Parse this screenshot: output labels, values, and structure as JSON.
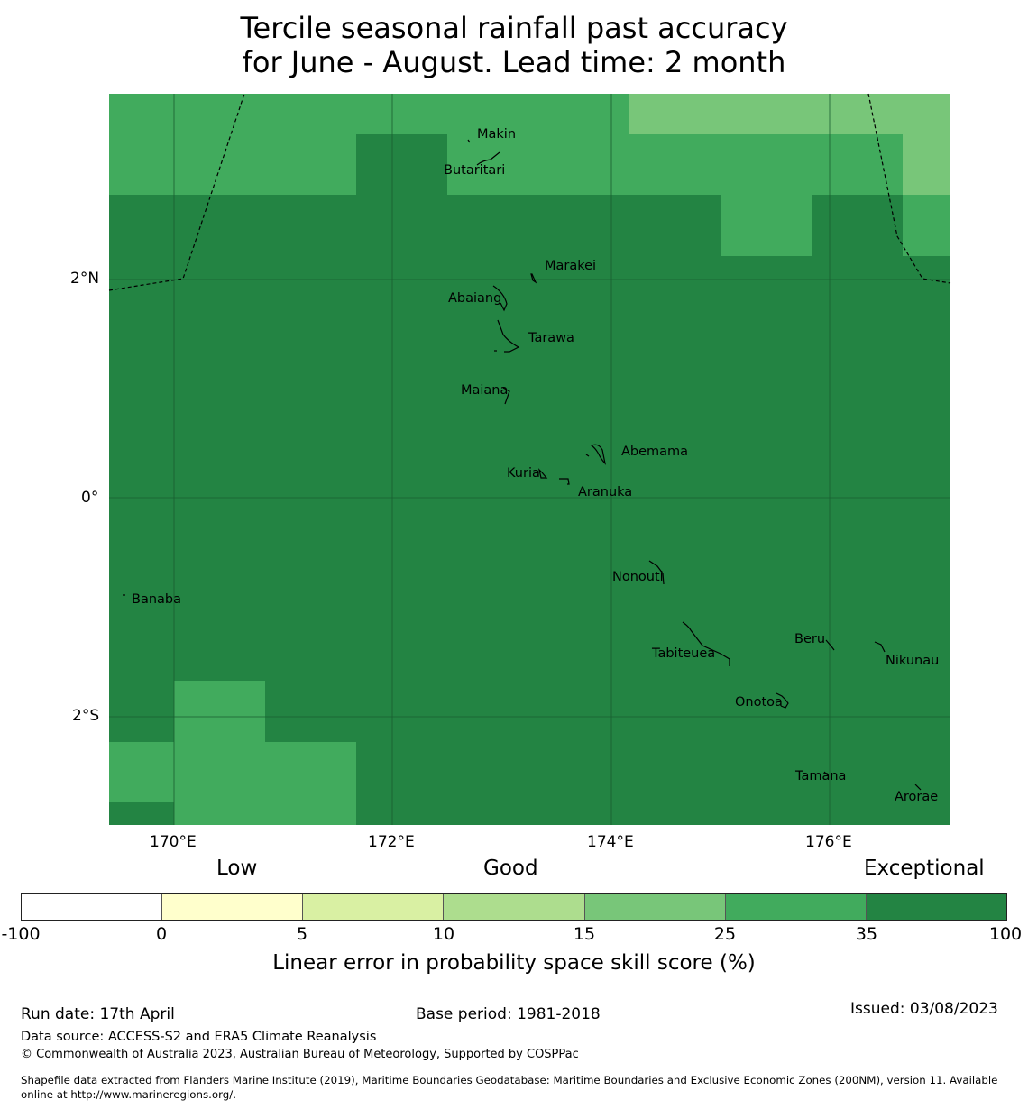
{
  "title": {
    "line1": "Tercile seasonal rainfall past accuracy",
    "line2": "for June - August. Lead time: 2 month"
  },
  "axes": {
    "lon_ticks": [
      "170°E",
      "172°E",
      "174°E",
      "176°E"
    ],
    "lat_ticks": [
      "2°N",
      "0°",
      "2°S"
    ]
  },
  "places": [
    "Makin",
    "Butaritari",
    "Marakei",
    "Abaiang",
    "Tarawa",
    "Maiana",
    "Abemama",
    "Kuria",
    "Aranuka",
    "Nonouti",
    "Banaba",
    "Beru",
    "Tabiteuea",
    "Nikunau",
    "Onotoa",
    "Tamana",
    "Arorae"
  ],
  "colorbar": {
    "categories": [
      "Low",
      "Good",
      "Exceptional"
    ],
    "bounds": [
      "-100",
      "0",
      "5",
      "10",
      "15",
      "25",
      "35",
      "100"
    ],
    "colors": [
      "#ffffff",
      "#ffffcc",
      "#d9f0a3",
      "#addd8e",
      "#78c679",
      "#41ab5d",
      "#238443"
    ],
    "title": "Linear error in probability space skill score (%)"
  },
  "footer": {
    "run_date": "Run date: 17th April",
    "base_period": "Base period: 1981-2018",
    "issued": "Issued: 03/08/2023",
    "data_source": "Data source: ACCESS-S2 and ERA5 Climate Reanalysis",
    "copyright": "© Commonwealth of Australia 2023, Australian Bureau of Meteorology, Supported by COSPPac",
    "shapefile_line1": "Shapefile data extracted from Flanders Marine Institute (2019), Maritime Boundaries Geodatabase: Maritime Boundaries and Exclusive Economic Zones (200NM), version 11. Available",
    "shapefile_line2": "online at http://www.marineregions.org/."
  }
}
